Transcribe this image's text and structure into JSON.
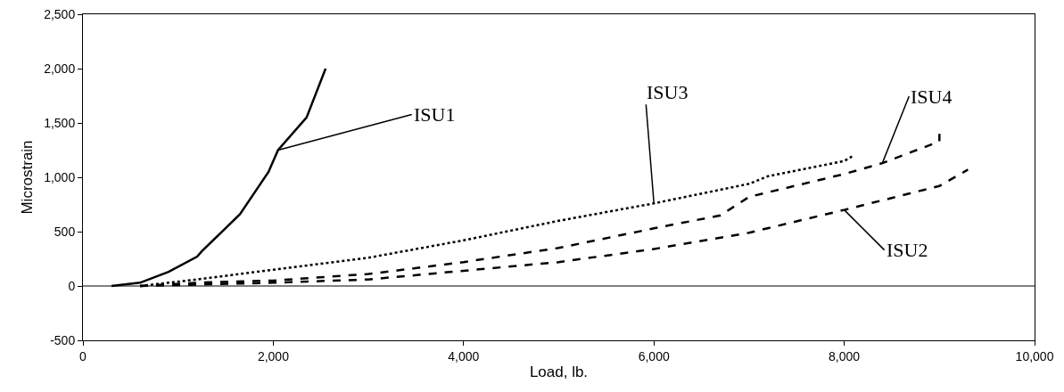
{
  "chart_data": {
    "type": "line",
    "xlabel": "Load, lb.",
    "ylabel": "Microstrain",
    "xlim": [
      0,
      10000
    ],
    "xticks": [
      0,
      {
        "value": 2000,
        "label": "2,000"
      },
      {
        "value": 4000,
        "label": "4,000"
      },
      {
        "value": 6000,
        "label": "6,000"
      },
      {
        "value": 8000,
        "label": "8,000"
      },
      {
        "value": 10000,
        "label": "10,000"
      }
    ],
    "ylim": [
      -500,
      2500
    ],
    "yticks": [
      -500,
      0,
      500,
      {
        "value": 1000,
        "label": "1,000"
      },
      {
        "value": 1500,
        "label": "1,500"
      },
      {
        "value": 2000,
        "label": "2,000"
      },
      {
        "value": 2500,
        "label": "2,500"
      }
    ],
    "grid": false,
    "ref_lines": [
      {
        "axis": "y",
        "value": 0
      }
    ],
    "legend": false,
    "marker": "none",
    "series": [
      {
        "name": "ISU1",
        "color": "#000000",
        "line_style": "solid",
        "x": [
          300,
          600,
          900,
          1200,
          1250,
          1650,
          1950,
          2050,
          2350,
          2550
        ],
        "values": [
          0,
          30,
          130,
          270,
          320,
          660,
          1050,
          1250,
          1550,
          2000
        ]
      },
      {
        "name": "ISU3",
        "color": "#000000",
        "line_style": "dotted",
        "x": [
          600,
          1200,
          2000,
          3000,
          4000,
          5000,
          6000,
          7000,
          7200,
          8000,
          8100
        ],
        "values": [
          0,
          60,
          150,
          260,
          420,
          600,
          760,
          940,
          1010,
          1150,
          1200
        ]
      },
      {
        "name": "ISU4",
        "color": "#000000",
        "line_style": "dashed",
        "x": [
          600,
          1200,
          2000,
          3000,
          4000,
          5000,
          6000,
          6700,
          7000,
          8000,
          8400,
          9000,
          9000
        ],
        "values": [
          0,
          30,
          50,
          110,
          220,
          350,
          530,
          650,
          820,
          1030,
          1130,
          1330,
          1400
        ]
      },
      {
        "name": "ISU2",
        "color": "#000000",
        "line_style": "dashed",
        "x": [
          600,
          2000,
          3000,
          4000,
          5000,
          6000,
          7000,
          8000,
          9000,
          9300
        ],
        "values": [
          0,
          30,
          60,
          140,
          220,
          340,
          490,
          700,
          920,
          1070
        ]
      }
    ]
  }
}
